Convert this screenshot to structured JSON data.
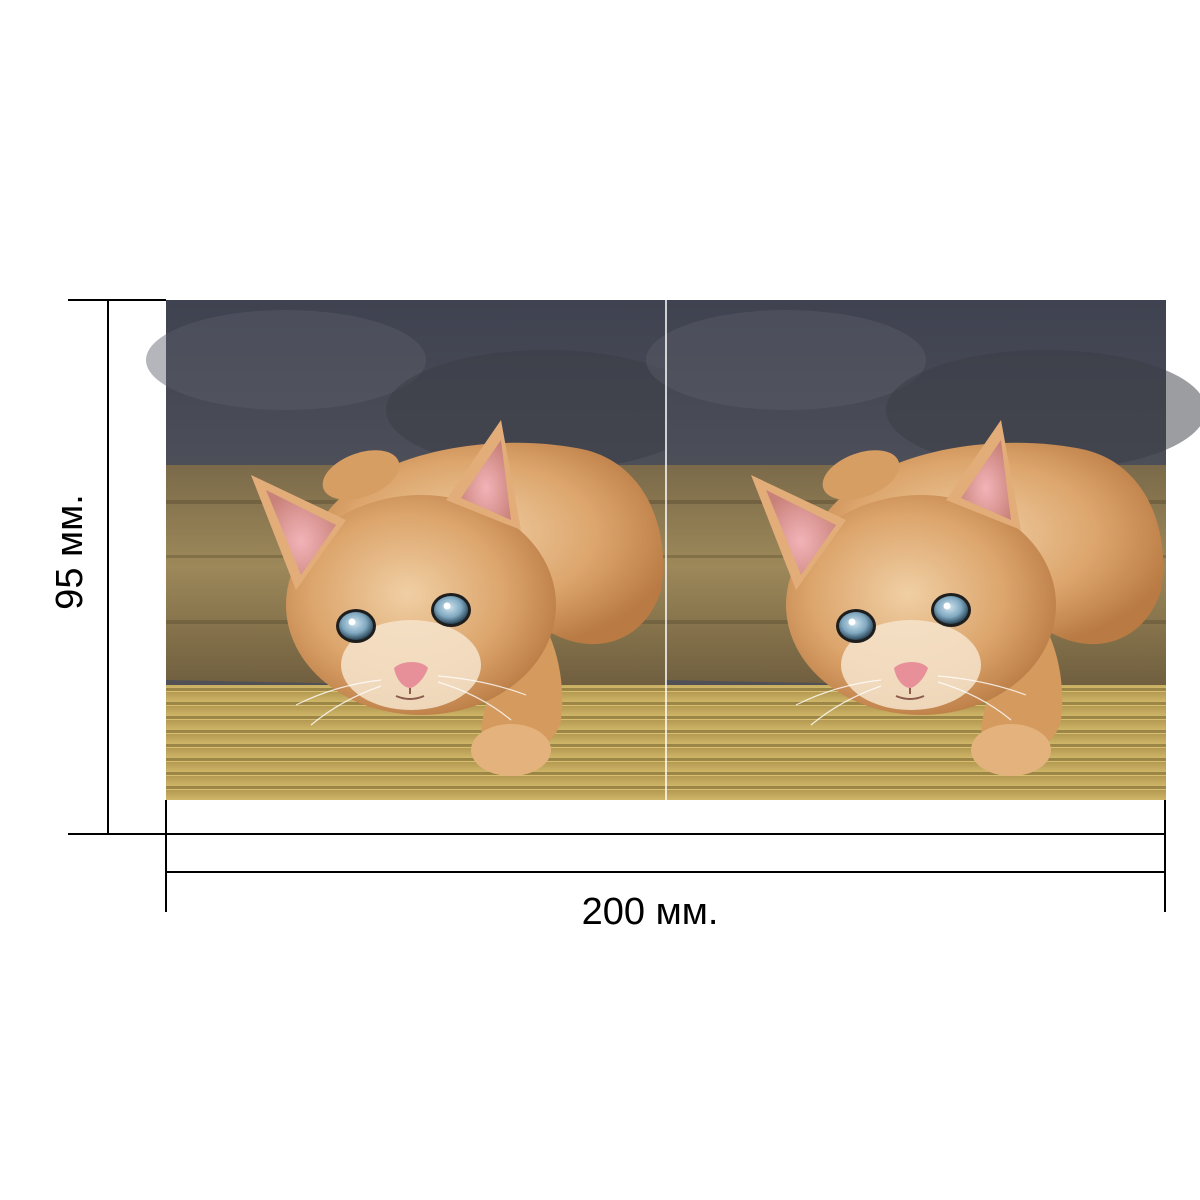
{
  "dimensions": {
    "width_label": "200 мм.",
    "height_label": "95 мм."
  },
  "photo": {
    "panels": [
      {
        "subject": "kitten"
      },
      {
        "subject": "kitten"
      }
    ]
  },
  "colors": {
    "line": "#000000",
    "background": "#ffffff",
    "fur": "#d9a066",
    "eye": "#7fa8c0",
    "nose": "#e8909a",
    "stone": "#4a4c58",
    "wood": "#a8925a"
  }
}
